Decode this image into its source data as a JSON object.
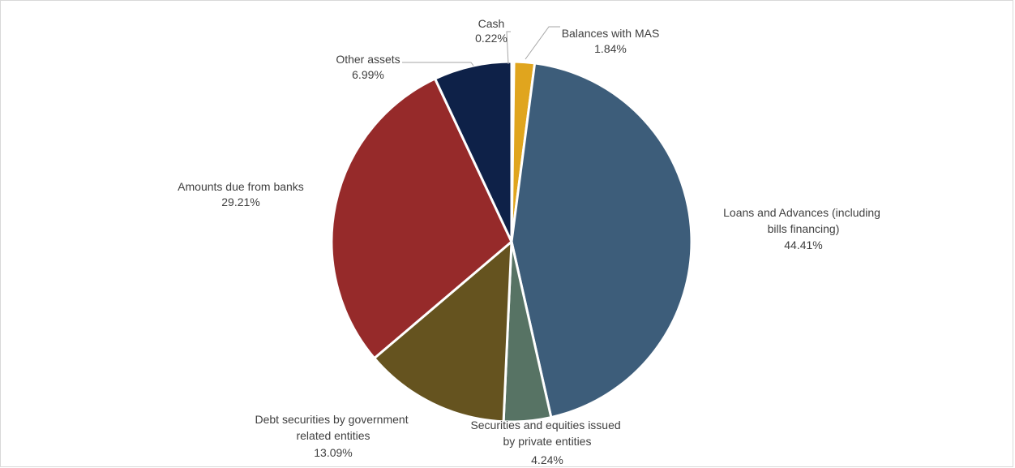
{
  "chart_data": {
    "type": "pie",
    "title": "",
    "slices": [
      {
        "label": "Cash",
        "value": 0.22,
        "value_label": "0.22%",
        "color": "#2E75B6"
      },
      {
        "label": "Balances with MAS",
        "value": 1.84,
        "value_label": "1.84%",
        "color": "#E0A51E"
      },
      {
        "label": "Loans and Advances (including bills financing)",
        "value": 44.41,
        "value_label": "44.41%",
        "color": "#3D5D7A"
      },
      {
        "label": "Securities and equities issued by private entities",
        "value": 4.24,
        "value_label": "4.24%",
        "color": "#577364"
      },
      {
        "label": "Debt securities by government related entities",
        "value": 13.09,
        "value_label": "13.09%",
        "color": "#65531F"
      },
      {
        "label": "Amounts due from banks",
        "value": 29.21,
        "value_label": "29.21%",
        "color": "#962A2A"
      },
      {
        "label": "Other assets",
        "value": 6.99,
        "value_label": "6.99%",
        "color": "#0E2148"
      }
    ]
  }
}
